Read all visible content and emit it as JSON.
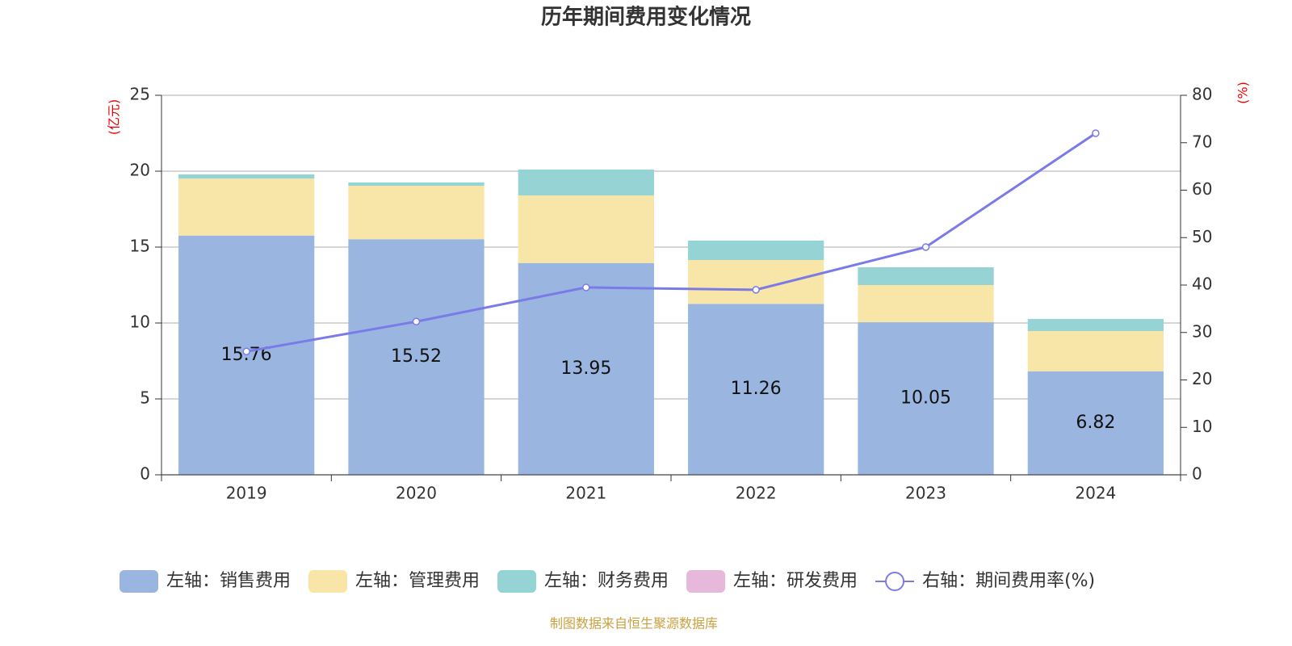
{
  "chart_data": {
    "type": "stacked-bar-line",
    "title": "历年期间费用变化情况",
    "y_label": "(亿元)",
    "y2_label": "(%)",
    "source": "制图数据来自恒生聚源数据库",
    "categories": [
      "2019",
      "2020",
      "2021",
      "2022",
      "2023",
      "2024"
    ],
    "series": [
      {
        "name": "左轴：销售费用",
        "color": "#9ab6e0",
        "values": [
          15.76,
          15.52,
          13.95,
          11.26,
          10.05,
          6.82
        ],
        "show_labels": true
      },
      {
        "name": "左轴：管理费用",
        "color": "#f7e6a7",
        "values": [
          3.76,
          3.52,
          4.45,
          2.89,
          2.45,
          2.65
        ]
      },
      {
        "name": "左轴：财务费用",
        "color": "#96d3d4",
        "values": [
          0.27,
          0.22,
          1.71,
          1.28,
          1.17,
          0.8
        ]
      },
      {
        "name": "左轴：研发费用",
        "color": "#e6b8da",
        "values": [
          0,
          0,
          0,
          0,
          0,
          0
        ]
      },
      {
        "name": "右轴：期间费用率(%)",
        "color": "#7b7be8",
        "type": "line",
        "axis": "y2",
        "values": [
          26.0,
          32.3,
          39.5,
          39.0,
          48.0,
          72.0
        ]
      }
    ],
    "ylim": [
      0,
      25
    ],
    "yticks": [
      0,
      5,
      10,
      15,
      20,
      25
    ],
    "y2lim": [
      0,
      80
    ],
    "y2ticks": [
      0,
      10,
      20,
      30,
      40,
      50,
      60,
      70,
      80
    ],
    "grid": true
  }
}
